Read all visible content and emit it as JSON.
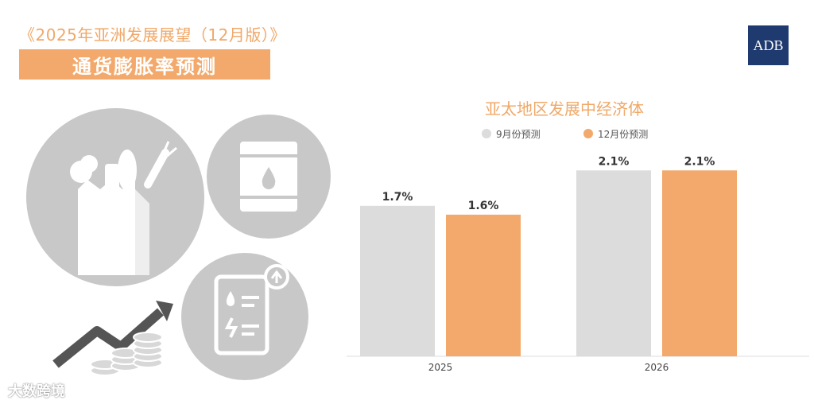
{
  "header": {
    "subtitle": "《2025年亚洲发展展望（12月版）》",
    "banner_title": "通货膨胀率预测",
    "logo_text": "ADB"
  },
  "illustration": {
    "icons": [
      "grocery-bag-icon",
      "oil-barrel-icon",
      "price-document-up-icon",
      "rising-arrow-coins-icon"
    ]
  },
  "watermark": "大数跨境",
  "colors": {
    "accent": "#f2a96b",
    "gray_bar": "#dcdcdc",
    "circle_gray": "#c8c8c8",
    "logo_bg": "#1f3a6e"
  },
  "chart_data": {
    "type": "bar",
    "title": "亚太地区发展中经济体",
    "categories": [
      "2025",
      "2026"
    ],
    "series": [
      {
        "name": "9月份预测",
        "values": [
          1.7,
          2.1
        ],
        "labels": [
          "1.7%",
          "2.1%"
        ],
        "color": "#dcdcdc"
      },
      {
        "name": "12月份预测",
        "values": [
          1.6,
          2.1
        ],
        "labels": [
          "1.6%",
          "2.1%"
        ],
        "color": "#f2a96b"
      }
    ],
    "ylim": [
      0,
      2.3
    ],
    "grid": false,
    "legend": "top"
  }
}
